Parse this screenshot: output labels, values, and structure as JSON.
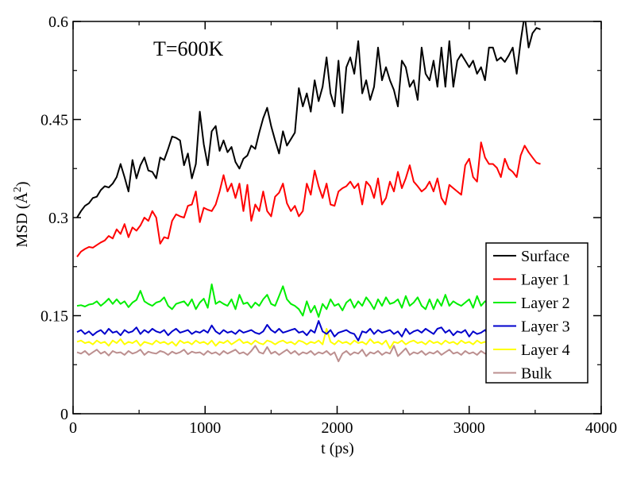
{
  "chart_data": {
    "type": "line",
    "title": "",
    "annotation": "T=600K",
    "xlabel": "t (ps)",
    "ylabel": "MSD (Å",
    "ylabel_sup": "2",
    "ylabel_close": ")",
    "xlim": [
      0,
      4000
    ],
    "ylim": [
      0,
      0.6
    ],
    "xticks": [
      0,
      1000,
      2000,
      3000,
      4000
    ],
    "xtick_labels": [
      "0",
      "1000",
      "2000",
      "3000",
      "4000"
    ],
    "yticks": [
      0,
      0.15,
      0.3,
      0.45,
      0.6
    ],
    "ytick_labels": [
      "0",
      "0.15",
      "0.3",
      "0.45",
      "0.6"
    ],
    "grid": false,
    "legend_position": "right",
    "x": [
      30,
      60,
      90,
      120,
      150,
      180,
      210,
      240,
      270,
      300,
      330,
      360,
      390,
      420,
      450,
      480,
      510,
      540,
      570,
      600,
      630,
      660,
      690,
      720,
      750,
      780,
      810,
      840,
      870,
      900,
      930,
      960,
      990,
      1020,
      1050,
      1080,
      1110,
      1140,
      1170,
      1200,
      1230,
      1260,
      1290,
      1320,
      1350,
      1380,
      1410,
      1440,
      1470,
      1500,
      1530,
      1560,
      1590,
      1620,
      1650,
      1680,
      1710,
      1740,
      1770,
      1800,
      1830,
      1860,
      1890,
      1920,
      1950,
      1980,
      2010,
      2040,
      2070,
      2100,
      2130,
      2160,
      2190,
      2220,
      2250,
      2280,
      2310,
      2340,
      2370,
      2400,
      2430,
      2460,
      2490,
      2520,
      2550,
      2580,
      2610,
      2640,
      2670,
      2700,
      2730,
      2760,
      2790,
      2820,
      2850,
      2880,
      2910,
      2940,
      2970,
      3000,
      3030,
      3060,
      3090,
      3120,
      3150,
      3180,
      3210,
      3240,
      3270,
      3300,
      3330,
      3360,
      3390,
      3420,
      3450,
      3480,
      3510,
      3540
    ],
    "series": [
      {
        "name": "Surface",
        "color": "#000000",
        "values": [
          0.3,
          0.31,
          0.318,
          0.322,
          0.33,
          0.332,
          0.342,
          0.348,
          0.346,
          0.352,
          0.362,
          0.382,
          0.362,
          0.34,
          0.388,
          0.36,
          0.38,
          0.392,
          0.372,
          0.37,
          0.36,
          0.392,
          0.388,
          0.405,
          0.424,
          0.422,
          0.418,
          0.38,
          0.398,
          0.36,
          0.382,
          0.462,
          0.412,
          0.38,
          0.432,
          0.44,
          0.402,
          0.418,
          0.4,
          0.408,
          0.385,
          0.375,
          0.39,
          0.395,
          0.41,
          0.405,
          0.43,
          0.452,
          0.468,
          0.44,
          0.418,
          0.398,
          0.432,
          0.41,
          0.42,
          0.43,
          0.498,
          0.47,
          0.49,
          0.462,
          0.51,
          0.478,
          0.5,
          0.545,
          0.49,
          0.47,
          0.54,
          0.46,
          0.53,
          0.545,
          0.52,
          0.57,
          0.49,
          0.51,
          0.48,
          0.5,
          0.56,
          0.51,
          0.53,
          0.51,
          0.495,
          0.47,
          0.54,
          0.53,
          0.5,
          0.51,
          0.48,
          0.56,
          0.52,
          0.51,
          0.54,
          0.5,
          0.56,
          0.5,
          0.57,
          0.5,
          0.54,
          0.55,
          0.54,
          0.53,
          0.54,
          0.52,
          0.53,
          0.51,
          0.56,
          0.56,
          0.54,
          0.545,
          0.538,
          0.548,
          0.56,
          0.52,
          0.57,
          0.61,
          0.56,
          0.582,
          0.59,
          0.588
        ],
        "show_values": [
          0.3,
          0.31,
          0.318,
          0.322,
          0.33,
          0.332,
          0.342,
          0.348,
          0.346,
          0.352,
          0.362,
          0.382,
          0.362,
          0.34,
          0.388,
          0.36,
          0.38,
          0.392,
          0.372,
          0.37,
          0.36,
          0.392,
          0.388,
          0.405,
          0.424,
          0.422,
          0.418,
          0.38,
          0.398,
          0.36,
          0.382,
          0.462,
          0.412,
          0.38,
          0.432,
          0.44,
          0.402,
          0.418,
          0.4,
          0.408,
          0.385,
          0.375,
          0.39,
          0.395,
          0.41,
          0.405,
          0.43,
          0.452,
          0.468,
          0.44,
          0.418,
          0.398,
          0.432,
          0.41,
          0.42,
          0.43,
          0.498,
          0.47,
          0.49,
          0.462,
          0.51,
          0.478,
          0.5,
          0.545,
          0.49,
          0.47,
          0.54,
          0.46,
          0.53,
          0.545,
          0.52,
          0.57,
          0.49,
          0.51,
          0.48,
          0.5,
          0.56,
          0.51,
          0.53,
          0.51,
          0.495,
          0.47,
          0.54,
          0.53,
          0.5,
          0.51,
          0.48,
          0.56,
          0.52,
          0.51,
          0.54,
          0.5,
          0.56,
          0.5,
          0.57,
          0.5,
          0.54,
          0.55,
          0.54,
          0.53,
          0.54,
          0.52,
          0.53,
          0.51,
          0.56,
          0.56,
          0.54,
          0.545,
          0.538,
          0.548,
          0.56,
          0.52,
          0.57,
          0.61,
          0.56,
          0.582,
          0.59,
          0.588
        ]
      },
      {
        "name": "Layer 1",
        "color": "#ff0000",
        "values": [
          0.24,
          0.248,
          0.252,
          0.255,
          0.254,
          0.258,
          0.262,
          0.265,
          0.272,
          0.268,
          0.282,
          0.275,
          0.29,
          0.27,
          0.285,
          0.28,
          0.288,
          0.3,
          0.295,
          0.31,
          0.3,
          0.26,
          0.27,
          0.268,
          0.295,
          0.305,
          0.302,
          0.3,
          0.318,
          0.32,
          0.34,
          0.293,
          0.315,
          0.312,
          0.31,
          0.32,
          0.34,
          0.365,
          0.34,
          0.352,
          0.33,
          0.352,
          0.31,
          0.35,
          0.295,
          0.32,
          0.31,
          0.34,
          0.31,
          0.302,
          0.332,
          0.338,
          0.352,
          0.322,
          0.31,
          0.318,
          0.302,
          0.31,
          0.352,
          0.335,
          0.372,
          0.348,
          0.33,
          0.352,
          0.32,
          0.318,
          0.34,
          0.345,
          0.348,
          0.355,
          0.345,
          0.352,
          0.32,
          0.355,
          0.348,
          0.33,
          0.36,
          0.32,
          0.33,
          0.355,
          0.34,
          0.37,
          0.345,
          0.36,
          0.38,
          0.355,
          0.348,
          0.34,
          0.345,
          0.355,
          0.34,
          0.36,
          0.33,
          0.32,
          0.35,
          0.345,
          0.34,
          0.335,
          0.38,
          0.39,
          0.362,
          0.355,
          0.415,
          0.392,
          0.382,
          0.382,
          0.376,
          0.362,
          0.39,
          0.375,
          0.37,
          0.362,
          0.395,
          0.41,
          0.4,
          0.392,
          0.384,
          0.382
        ],
        "show_values": []
      },
      {
        "name": "Layer 2",
        "color": "#00ee00",
        "values": [
          0.165,
          0.166,
          0.164,
          0.167,
          0.168,
          0.172,
          0.165,
          0.17,
          0.176,
          0.168,
          0.175,
          0.168,
          0.172,
          0.163,
          0.17,
          0.174,
          0.188,
          0.172,
          0.168,
          0.165,
          0.17,
          0.172,
          0.178,
          0.165,
          0.16,
          0.168,
          0.17,
          0.172,
          0.165,
          0.175,
          0.16,
          0.17,
          0.176,
          0.162,
          0.198,
          0.168,
          0.172,
          0.168,
          0.165,
          0.175,
          0.16,
          0.182,
          0.168,
          0.17,
          0.162,
          0.17,
          0.165,
          0.175,
          0.182,
          0.168,
          0.165,
          0.18,
          0.195,
          0.175,
          0.168,
          0.165,
          0.16,
          0.15,
          0.172,
          0.155,
          0.165,
          0.148,
          0.168,
          0.16,
          0.175,
          0.165,
          0.168,
          0.158,
          0.17,
          0.175,
          0.162,
          0.172,
          0.165,
          0.178,
          0.17,
          0.16,
          0.175,
          0.165,
          0.178,
          0.168,
          0.17,
          0.175,
          0.162,
          0.18,
          0.165,
          0.17,
          0.178,
          0.165,
          0.16,
          0.175,
          0.16,
          0.175,
          0.165,
          0.182,
          0.165,
          0.172,
          0.168,
          0.165,
          0.17,
          0.175,
          0.162,
          0.18,
          0.165,
          0.172,
          0.168,
          0.165,
          0.17,
          0.185,
          0.168,
          0.172,
          0.165,
          0.162,
          0.195,
          0.168,
          0.17,
          0.165,
          0.172,
          0.17
        ],
        "show_values": []
      },
      {
        "name": "Layer 3",
        "color": "#0000cc",
        "values": [
          0.125,
          0.128,
          0.122,
          0.126,
          0.12,
          0.125,
          0.128,
          0.122,
          0.13,
          0.124,
          0.126,
          0.12,
          0.128,
          0.124,
          0.126,
          0.132,
          0.122,
          0.128,
          0.124,
          0.13,
          0.126,
          0.124,
          0.128,
          0.12,
          0.126,
          0.13,
          0.124,
          0.126,
          0.128,
          0.122,
          0.126,
          0.124,
          0.128,
          0.124,
          0.135,
          0.126,
          0.122,
          0.128,
          0.124,
          0.126,
          0.122,
          0.128,
          0.124,
          0.126,
          0.128,
          0.124,
          0.122,
          0.126,
          0.136,
          0.128,
          0.124,
          0.13,
          0.124,
          0.126,
          0.128,
          0.13,
          0.124,
          0.126,
          0.12,
          0.128,
          0.124,
          0.142,
          0.126,
          0.122,
          0.128,
          0.118,
          0.124,
          0.126,
          0.128,
          0.124,
          0.122,
          0.112,
          0.126,
          0.124,
          0.13,
          0.122,
          0.128,
          0.124,
          0.126,
          0.128,
          0.122,
          0.126,
          0.118,
          0.13,
          0.122,
          0.126,
          0.128,
          0.124,
          0.13,
          0.126,
          0.122,
          0.13,
          0.132,
          0.124,
          0.128,
          0.12,
          0.126,
          0.124,
          0.128,
          0.118,
          0.126,
          0.122,
          0.124,
          0.128,
          0.12,
          0.126,
          0.124,
          0.128,
          0.122,
          0.126,
          0.12,
          0.124,
          0.126,
          0.122,
          0.128,
          0.124,
          0.126,
          0.124
        ],
        "show_values": []
      },
      {
        "name": "Layer 4",
        "color": "#ffff00",
        "values": [
          0.11,
          0.112,
          0.108,
          0.11,
          0.106,
          0.112,
          0.108,
          0.11,
          0.104,
          0.112,
          0.108,
          0.114,
          0.106,
          0.11,
          0.108,
          0.112,
          0.104,
          0.11,
          0.108,
          0.106,
          0.112,
          0.108,
          0.11,
          0.106,
          0.11,
          0.104,
          0.112,
          0.108,
          0.11,
          0.106,
          0.112,
          0.108,
          0.11,
          0.106,
          0.112,
          0.104,
          0.11,
          0.108,
          0.112,
          0.106,
          0.11,
          0.114,
          0.108,
          0.11,
          0.106,
          0.112,
          0.108,
          0.106,
          0.112,
          0.11,
          0.106,
          0.11,
          0.112,
          0.108,
          0.11,
          0.106,
          0.112,
          0.11,
          0.106,
          0.11,
          0.108,
          0.112,
          0.106,
          0.13,
          0.11,
          0.106,
          0.112,
          0.108,
          0.11,
          0.106,
          0.112,
          0.108,
          0.11,
          0.106,
          0.114,
          0.108,
          0.11,
          0.106,
          0.112,
          0.1,
          0.11,
          0.108,
          0.112,
          0.106,
          0.11,
          0.112,
          0.108,
          0.11,
          0.106,
          0.112,
          0.108,
          0.11,
          0.106,
          0.112,
          0.108,
          0.11,
          0.106,
          0.112,
          0.108,
          0.11,
          0.106,
          0.112,
          0.108,
          0.11,
          0.106,
          0.112,
          0.108,
          0.11,
          0.106,
          0.112,
          0.108,
          0.11,
          0.106,
          0.112,
          0.108,
          0.11,
          0.106,
          0.11
        ],
        "show_values": []
      },
      {
        "name": "Bulk",
        "color": "#bc8f8f",
        "values": [
          0.094,
          0.092,
          0.096,
          0.09,
          0.094,
          0.098,
          0.092,
          0.095,
          0.089,
          0.096,
          0.093,
          0.094,
          0.09,
          0.096,
          0.092,
          0.094,
          0.098,
          0.09,
          0.095,
          0.093,
          0.092,
          0.096,
          0.094,
          0.09,
          0.095,
          0.092,
          0.094,
          0.098,
          0.091,
          0.095,
          0.093,
          0.094,
          0.09,
          0.096,
          0.092,
          0.094,
          0.09,
          0.096,
          0.092,
          0.095,
          0.098,
          0.092,
          0.094,
          0.09,
          0.096,
          0.104,
          0.094,
          0.092,
          0.102,
          0.092,
          0.095,
          0.09,
          0.094,
          0.098,
          0.092,
          0.096,
          0.09,
          0.094,
          0.092,
          0.096,
          0.09,
          0.094,
          0.092,
          0.096,
          0.09,
          0.094,
          0.08,
          0.092,
          0.096,
          0.09,
          0.094,
          0.092,
          0.098,
          0.088,
          0.094,
          0.092,
          0.096,
          0.09,
          0.094,
          0.092,
          0.104,
          0.088,
          0.094,
          0.1,
          0.09,
          0.094,
          0.092,
          0.096,
          0.09,
          0.094,
          0.092,
          0.096,
          0.09,
          0.094,
          0.098,
          0.092,
          0.094,
          0.09,
          0.096,
          0.092,
          0.094,
          0.09,
          0.096,
          0.092,
          0.094,
          0.09,
          0.096,
          0.092,
          0.094,
          0.09,
          0.096,
          0.092,
          0.094,
          0.09,
          0.096,
          0.092,
          0.094,
          0.092
        ],
        "show_values": []
      }
    ]
  }
}
